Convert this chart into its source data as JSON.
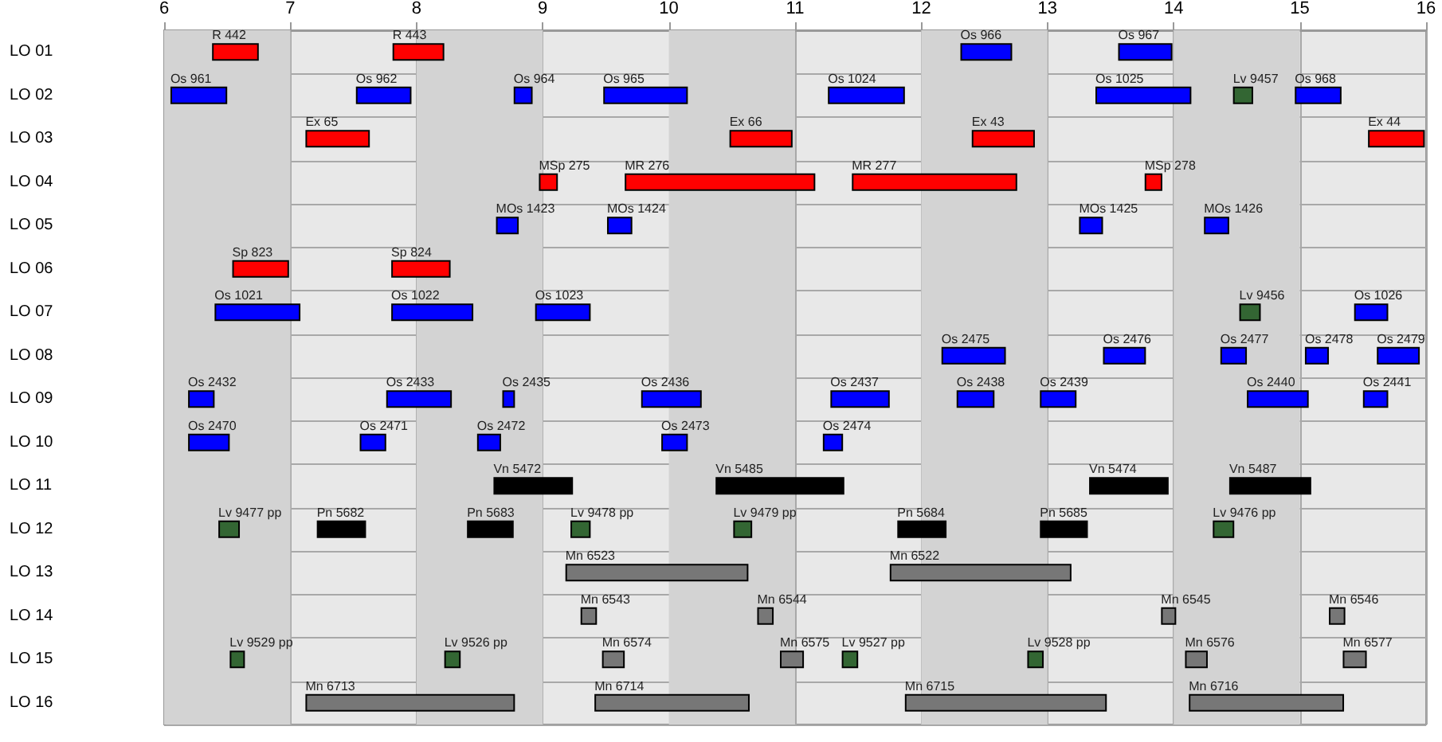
{
  "chart_data": {
    "type": "bar",
    "orientation": "horizontal",
    "grid": true,
    "categories": [
      "LO 01",
      "LO 02",
      "LO 03",
      "LO 04",
      "LO 05",
      "LO 06",
      "LO 07",
      "LO 08",
      "LO 09",
      "LO 10",
      "LO 11",
      "LO 12",
      "LO 13",
      "LO 14",
      "LO 15",
      "LO 16"
    ],
    "xlim": [
      6,
      16
    ],
    "xticks": [
      6,
      7,
      8,
      9,
      10,
      11,
      12,
      13,
      14,
      15,
      16
    ],
    "bands": [
      {
        "axis": "x",
        "from": 6,
        "to": 7,
        "color": "#d3d3d3"
      },
      {
        "axis": "x",
        "from": 8,
        "to": 9,
        "color": "#d3d3d3"
      },
      {
        "axis": "x",
        "from": 10,
        "to": 11,
        "color": "#d3d3d3"
      },
      {
        "axis": "x",
        "from": 12,
        "to": 13,
        "color": "#d3d3d3"
      },
      {
        "axis": "x",
        "from": 14,
        "to": 15,
        "color": "#d3d3d3"
      }
    ],
    "series": [
      {
        "base": [
          6.38,
          6.05,
          7.12,
          8.97,
          8.63,
          6.54,
          6.4,
          12.16,
          6.19,
          6.19,
          8.61,
          6.43,
          9.18,
          9.3,
          6.52,
          7.12
        ],
        "values": [
          0.37,
          0.45,
          0.51,
          0.15,
          0.18,
          0.45,
          0.68,
          0.51,
          0.21,
          0.33,
          0.63,
          0.17,
          1.45,
          0.13,
          0.12,
          1.66
        ],
        "colors": [
          "#ff0000",
          "#0000ff",
          "#ff0000",
          "#ff0000",
          "#0000ff",
          "#ff0000",
          "#0000ff",
          "#0000ff",
          "#0000ff",
          "#0000ff",
          "#000000",
          "#336633",
          "#777777",
          "#777777",
          "#336633",
          "#777777"
        ],
        "value_labels": [
          "R 442",
          "Os 961",
          "Ex 65",
          "MSp 275",
          "MOs 1423",
          "Sp 823",
          "Os 1021",
          "Os 2475",
          "Os 2432",
          "Os 2470",
          "Vn 5472",
          "Lv 9477 pp",
          "Mn 6523",
          "Mn 6543",
          "Lv 9529 pp",
          "Mn 6713"
        ]
      },
      {
        "base": [
          7.81,
          7.52,
          10.48,
          9.65,
          9.51,
          7.8,
          7.8,
          13.44,
          7.76,
          7.55,
          10.37,
          7.21,
          11.75,
          10.7,
          8.22,
          9.41
        ],
        "values": [
          0.41,
          0.44,
          0.5,
          1.51,
          0.2,
          0.47,
          0.65,
          0.34,
          0.52,
          0.21,
          1.02,
          0.39,
          1.44,
          0.13,
          0.13,
          1.23
        ],
        "colors": [
          "#ff0000",
          "#0000ff",
          "#ff0000",
          "#ff0000",
          "#0000ff",
          "#ff0000",
          "#0000ff",
          "#0000ff",
          "#0000ff",
          "#0000ff",
          "#000000",
          "#000000",
          "#777777",
          "#777777",
          "#336633",
          "#777777"
        ],
        "value_labels": [
          "R 443",
          "Os 962",
          "Ex 66",
          "MR 276",
          "MOs 1424",
          "Sp 824",
          "Os 1022",
          "Os 2476",
          "Os 2433",
          "Os 2471",
          "Vn 5485",
          "Pn 5682",
          "Mn 6522",
          "Mn 6544",
          "Lv 9526 pp",
          "Mn 6714"
        ]
      },
      {
        "base": [
          12.31,
          8.77,
          12.4,
          11.45,
          13.25,
          null,
          8.94,
          14.37,
          8.68,
          8.48,
          13.33,
          8.4,
          null,
          13.9,
          9.47,
          11.87
        ],
        "values": [
          0.41,
          0.15,
          0.5,
          1.31,
          0.19,
          null,
          0.44,
          0.21,
          0.1,
          0.19,
          0.63,
          0.37,
          null,
          0.12,
          0.18,
          1.6
        ],
        "colors": [
          "#0000ff",
          "#0000ff",
          "#ff0000",
          "#ff0000",
          "#0000ff",
          null,
          "#0000ff",
          "#0000ff",
          "#0000ff",
          "#0000ff",
          "#000000",
          "#000000",
          null,
          "#777777",
          "#777777",
          "#777777"
        ],
        "value_labels": [
          "Os 966",
          "Os 964",
          "Ex 43",
          "MR 277",
          "MOs 1425",
          null,
          "Os 1023",
          "Os 2477",
          "Os 2435",
          "Os 2472",
          "Vn 5474",
          "Pn 5683",
          null,
          "Mn 6545",
          "Mn 6574",
          "Mn 6715"
        ]
      },
      {
        "base": [
          13.56,
          9.48,
          15.54,
          13.77,
          14.24,
          null,
          14.52,
          15.04,
          9.78,
          9.94,
          14.44,
          9.22,
          null,
          15.23,
          10.88,
          14.12
        ],
        "values": [
          0.43,
          0.67,
          0.45,
          0.14,
          0.2,
          null,
          0.17,
          0.19,
          0.48,
          0.21,
          0.65,
          0.16,
          null,
          0.13,
          0.19,
          1.23
        ],
        "colors": [
          "#0000ff",
          "#0000ff",
          "#ff0000",
          "#ff0000",
          "#0000ff",
          null,
          "#336633",
          "#0000ff",
          "#0000ff",
          "#0000ff",
          "#000000",
          "#336633",
          null,
          "#777777",
          "#777777",
          "#777777"
        ],
        "value_labels": [
          "Os 967",
          "Os 965",
          "Ex 44",
          "MSp 278",
          "MOs 1426",
          null,
          "Lv 9456",
          "Os 2478",
          "Os 2436",
          "Os 2473",
          "Vn 5487",
          "Lv 9478 pp",
          null,
          "Mn 6546",
          "Mn 6575",
          "Mn 6716"
        ]
      },
      {
        "base": [
          null,
          11.26,
          null,
          null,
          null,
          null,
          15.43,
          15.61,
          11.28,
          11.22,
          null,
          10.51,
          null,
          null,
          11.37,
          null
        ],
        "values": [
          null,
          0.61,
          null,
          null,
          null,
          null,
          0.27,
          0.34,
          0.47,
          0.16,
          null,
          0.15,
          null,
          null,
          0.13,
          null
        ],
        "colors": [
          null,
          "#0000ff",
          null,
          null,
          null,
          null,
          "#0000ff",
          "#0000ff",
          "#0000ff",
          "#0000ff",
          null,
          "#336633",
          null,
          null,
          "#336633",
          null
        ],
        "value_labels": [
          null,
          "Os 1024",
          null,
          null,
          null,
          null,
          "Os 1026",
          "Os 2479",
          "Os 2437",
          "Os 2474",
          null,
          "Lv 9479 pp",
          null,
          null,
          "Lv 9527 pp",
          null
        ]
      },
      {
        "base": [
          null,
          13.38,
          null,
          null,
          null,
          null,
          null,
          null,
          12.28,
          null,
          null,
          11.81,
          null,
          null,
          12.84,
          null
        ],
        "values": [
          null,
          0.76,
          null,
          null,
          null,
          null,
          null,
          null,
          0.3,
          null,
          null,
          0.39,
          null,
          null,
          0.13,
          null
        ],
        "colors": [
          null,
          "#0000ff",
          null,
          null,
          null,
          null,
          null,
          null,
          "#0000ff",
          null,
          null,
          "#000000",
          null,
          null,
          "#336633",
          null
        ],
        "value_labels": [
          null,
          "Os 1025",
          null,
          null,
          null,
          null,
          null,
          null,
          "Os 2438",
          null,
          null,
          "Pn 5684",
          null,
          null,
          "Lv 9528 pp",
          null
        ]
      },
      {
        "base": [
          null,
          14.47,
          null,
          null,
          null,
          null,
          null,
          null,
          12.94,
          null,
          null,
          12.94,
          null,
          null,
          14.09,
          null
        ],
        "values": [
          null,
          0.16,
          null,
          null,
          null,
          null,
          null,
          null,
          0.29,
          null,
          null,
          0.38,
          null,
          null,
          0.18,
          null
        ],
        "colors": [
          null,
          "#336633",
          null,
          null,
          null,
          null,
          null,
          null,
          "#0000ff",
          null,
          null,
          "#000000",
          null,
          null,
          "#777777",
          null
        ],
        "value_labels": [
          null,
          "Lv 9457",
          null,
          null,
          null,
          null,
          null,
          null,
          "Os 2439",
          null,
          null,
          "Pn 5685",
          null,
          null,
          "Mn 6576",
          null
        ]
      },
      {
        "base": [
          null,
          14.96,
          null,
          null,
          null,
          null,
          null,
          null,
          14.58,
          null,
          null,
          14.31,
          null,
          null,
          15.34,
          null
        ],
        "values": [
          null,
          0.37,
          null,
          null,
          null,
          null,
          null,
          null,
          0.49,
          null,
          null,
          0.17,
          null,
          null,
          0.19,
          null
        ],
        "colors": [
          null,
          "#0000ff",
          null,
          null,
          null,
          null,
          null,
          null,
          "#0000ff",
          null,
          null,
          "#336633",
          null,
          null,
          "#777777",
          null
        ],
        "value_labels": [
          null,
          "Os 968",
          null,
          null,
          null,
          null,
          null,
          null,
          "Os 2440",
          null,
          null,
          "Lv 9476 pp",
          null,
          null,
          "Mn 6577",
          null
        ]
      },
      {
        "base": [
          null,
          null,
          null,
          null,
          null,
          null,
          null,
          null,
          15.5,
          null,
          null,
          null,
          null,
          null,
          null,
          null
        ],
        "values": [
          null,
          null,
          null,
          null,
          null,
          null,
          null,
          null,
          0.2,
          null,
          null,
          null,
          null,
          null,
          null,
          null
        ],
        "colors": [
          null,
          null,
          null,
          null,
          null,
          null,
          null,
          null,
          "#0000ff",
          null,
          null,
          null,
          null,
          null,
          null,
          null
        ],
        "value_labels": [
          null,
          null,
          null,
          null,
          null,
          null,
          null,
          null,
          "Os 2441",
          null,
          null,
          null,
          null,
          null,
          null,
          null
        ]
      }
    ]
  }
}
